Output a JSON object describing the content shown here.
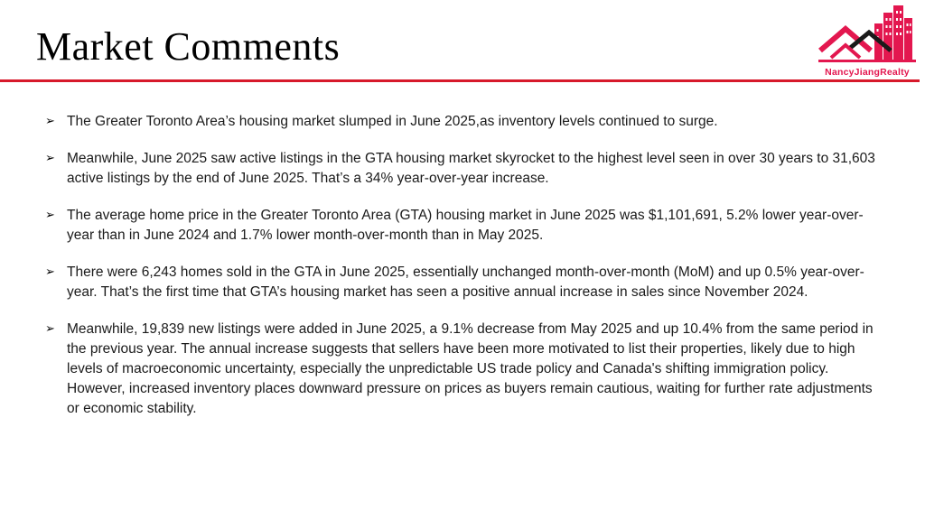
{
  "slide": {
    "title": "Market Comments",
    "brand": {
      "logo_icon": "house-city-logo-icon",
      "name": "NancyJiangRealty",
      "color": "#e3174f"
    },
    "accent_color": "#d7192b",
    "bullet_marker": "➢",
    "bullets": [
      "The Greater Toronto Area’s housing market slumped in June 2025,as inventory levels continued to surge.",
      "Meanwhile, June 2025 saw active listings in the GTA housing market skyrocket to the highest level seen in over 30 years to 31,603 active listings by the end of June 2025. That’s a 34% year-over-year increase.",
      "The average home price in the Greater Toronto Area (GTA) housing market in June 2025 was $1,101,691, 5.2% lower year-over-year than in June 2024 and 1.7% lower month-over-month than in May 2025.",
      "There were 6,243 homes sold in the GTA in June 2025, essentially unchanged month-over-month (MoM) and up 0.5% year-over-year. That’s the first time that GTA’s housing market has seen a positive annual increase in sales since November 2024.",
      "Meanwhile, 19,839 new listings were added in June 2025, a 9.1% decrease from May 2025 and up 10.4% from the same period in the previous year. The annual increase suggests that sellers have been more motivated to list their properties, likely due to high levels of macroeconomic uncertainty, especially the unpredictable US trade policy and Canada's shifting immigration policy. However, increased inventory places downward pressure on prices as buyers remain cautious, waiting for further rate adjustments or economic stability."
    ]
  }
}
